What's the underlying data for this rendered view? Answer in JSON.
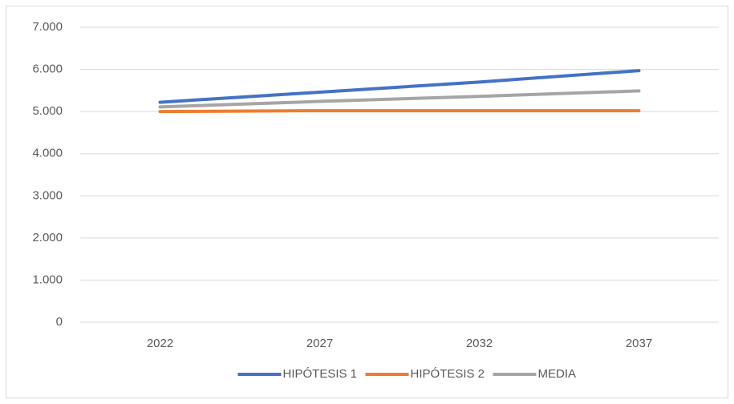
{
  "chart_data": {
    "type": "line",
    "categories": [
      "2022",
      "2027",
      "2032",
      "2037"
    ],
    "series": [
      {
        "name": "HIPÓTESIS 1",
        "color": "#4472c4",
        "values": [
          5220,
          5460,
          5700,
          5970
        ]
      },
      {
        "name": "HIPÓTESIS 2",
        "color": "#ed7d31",
        "values": [
          5000,
          5020,
          5020,
          5020
        ]
      },
      {
        "name": "MEDIA",
        "color": "#a5a5a5",
        "values": [
          5110,
          5240,
          5360,
          5490
        ]
      }
    ],
    "ylim": [
      0,
      7000
    ],
    "yticks": [
      0,
      {
        "value": 1000,
        "label": "1.000"
      },
      {
        "value": 2000,
        "label": "2.000"
      },
      {
        "value": 3000,
        "label": "3.000"
      },
      {
        "value": 4000,
        "label": "4.000"
      },
      {
        "value": 5000,
        "label": "5.000"
      },
      {
        "value": 6000,
        "label": "6.000"
      },
      {
        "value": 7000,
        "label": "7.000"
      }
    ],
    "grid": true,
    "legend": "bottom"
  }
}
